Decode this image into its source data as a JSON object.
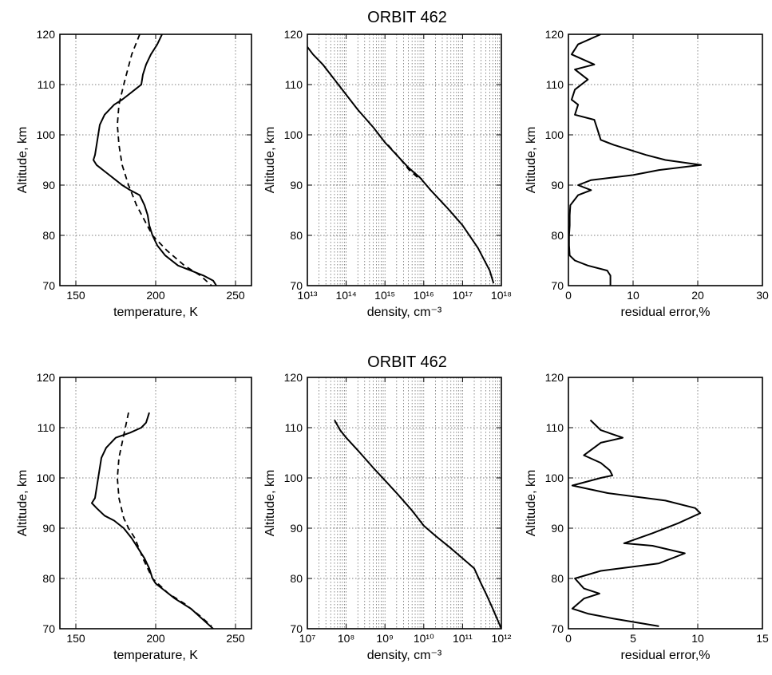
{
  "figure": {
    "row_titles": [
      "ORBIT 462",
      "ORBIT 462"
    ]
  },
  "chart_data": [
    {
      "type": "line",
      "xlabel": "temperature, K",
      "ylabel": "Altitude, km",
      "xlim": [
        140,
        260
      ],
      "ylim": [
        70,
        120
      ],
      "xticks": [
        "150",
        "200",
        "250"
      ],
      "yticks": [
        "70",
        "80",
        "90",
        "100",
        "110",
        "120"
      ],
      "series": [
        {
          "style": "solid",
          "points": [
            [
              204,
              120
            ],
            [
              201,
              118
            ],
            [
              197,
              116
            ],
            [
              194,
              114
            ],
            [
              192,
              112
            ],
            [
              191,
              110
            ],
            [
              187,
              109
            ],
            [
              183,
              108
            ],
            [
              179,
              107
            ],
            [
              174,
              106
            ],
            [
              168,
              104
            ],
            [
              165,
              102
            ],
            [
              164,
              100
            ],
            [
              163,
              98
            ],
            [
              162,
              96
            ],
            [
              161,
              95
            ],
            [
              163,
              94
            ],
            [
              167,
              93
            ],
            [
              171,
              92
            ],
            [
              175,
              91
            ],
            [
              179,
              90
            ],
            [
              184,
              89
            ],
            [
              190,
              88
            ],
            [
              193,
              86
            ],
            [
              195,
              84
            ],
            [
              196,
              82
            ],
            [
              198,
              80
            ],
            [
              201,
              78
            ],
            [
              206,
              76
            ],
            [
              214,
              74
            ],
            [
              222,
              73
            ],
            [
              230,
              72
            ],
            [
              236,
              71
            ],
            [
              238,
              70
            ]
          ]
        },
        {
          "style": "dashed",
          "points": [
            [
              190,
              120
            ],
            [
              185,
              116
            ],
            [
              180,
              110
            ],
            [
              177,
              106
            ],
            [
              176,
              102
            ],
            [
              177,
              98
            ],
            [
              179,
              94
            ],
            [
              183,
              90
            ],
            [
              188,
              86
            ],
            [
              193,
              83
            ],
            [
              198,
              80
            ],
            [
              207,
              77
            ],
            [
              218,
              74
            ],
            [
              228,
              72
            ],
            [
              235,
              70
            ]
          ]
        }
      ]
    },
    {
      "type": "line",
      "xlabel": "density, cm⁻³",
      "ylabel": "Altitude, km",
      "xscale": "log",
      "xlim": [
        10000000000000.0,
        1e+18
      ],
      "ylim": [
        70,
        120
      ],
      "xticks": [
        "10¹³",
        "10¹⁴",
        "10¹⁵",
        "10¹⁶",
        "10¹⁷",
        "10¹⁸"
      ],
      "yticks": [
        "70",
        "80",
        "90",
        "100",
        "110",
        "120"
      ],
      "series": [
        {
          "style": "solid",
          "points": [
            [
              10000000000000.0,
              117.5
            ],
            [
              14000000000000.0,
              116
            ],
            [
              25000000000000.0,
              114
            ],
            [
              50000000000000.0,
              111
            ],
            [
              100000000000000.0,
              108
            ],
            [
              200000000000000.0,
              105
            ],
            [
              500000000000000.0,
              101.5
            ],
            [
              1000000000000000.0,
              98.5
            ],
            [
              2000000000000000.0,
              96
            ],
            [
              4000000000000000.0,
              93.5
            ],
            [
              8000000000000000.0,
              91.5
            ],
            [
              1.5e+16,
              89
            ],
            [
              4e+16,
              85.5
            ],
            [
              1e+17,
              82
            ],
            [
              2.5e+17,
              77.5
            ],
            [
              5e+17,
              73
            ],
            [
              6.3e+17,
              70.5
            ]
          ]
        },
        {
          "style": "dashed",
          "points": [
            [
              1200000000000000.0,
              98
            ],
            [
              2300000000000000.0,
              95.5
            ],
            [
              4200000000000000.0,
              93
            ],
            [
              7000000000000000.0,
              91.5
            ]
          ]
        }
      ]
    },
    {
      "type": "line",
      "xlabel": "residual error,%",
      "ylabel": "Altitude, km",
      "xlim": [
        0,
        30
      ],
      "ylim": [
        70,
        120
      ],
      "xticks": [
        "0",
        "10",
        "20",
        "30"
      ],
      "yticks": [
        "70",
        "80",
        "90",
        "100",
        "110",
        "120"
      ],
      "series": [
        {
          "style": "solid",
          "points": [
            [
              5,
              120
            ],
            [
              1.5,
              118
            ],
            [
              0.5,
              116
            ],
            [
              4,
              114
            ],
            [
              1,
              113
            ],
            [
              3,
              111
            ],
            [
              1,
              109
            ],
            [
              0.5,
              107
            ],
            [
              1.5,
              106
            ],
            [
              1,
              104
            ],
            [
              4,
              103
            ],
            [
              4.5,
              101
            ],
            [
              5,
              99
            ],
            [
              7,
              98
            ],
            [
              12,
              96
            ],
            [
              15,
              95
            ],
            [
              20.5,
              94
            ],
            [
              14,
              93
            ],
            [
              10,
              92
            ],
            [
              3.5,
              91
            ],
            [
              1.5,
              90
            ],
            [
              3.5,
              89
            ],
            [
              1.5,
              88
            ],
            [
              0.3,
              86
            ],
            [
              0.2,
              84
            ],
            [
              0.2,
              82
            ],
            [
              0.1,
              80
            ],
            [
              0.1,
              78
            ],
            [
              0.2,
              76
            ],
            [
              1,
              75
            ],
            [
              3,
              74
            ],
            [
              6,
              73
            ],
            [
              6.5,
              72
            ],
            [
              6.5,
              70
            ]
          ]
        }
      ]
    },
    {
      "type": "line",
      "xlabel": "temperature, K",
      "ylabel": "Altitude, km",
      "xlim": [
        140,
        260
      ],
      "ylim": [
        70,
        120
      ],
      "xticks": [
        "150",
        "200",
        "250"
      ],
      "yticks": [
        "70",
        "80",
        "90",
        "100",
        "110",
        "120"
      ],
      "series": [
        {
          "style": "solid",
          "points": [
            [
              196,
              113
            ],
            [
              194,
              111
            ],
            [
              191,
              110
            ],
            [
              184,
              109
            ],
            [
              175,
              108
            ],
            [
              169,
              106
            ],
            [
              166,
              104
            ],
            [
              165,
              102
            ],
            [
              164,
              100
            ],
            [
              163,
              98
            ],
            [
              162,
              96
            ],
            [
              160,
              95
            ],
            [
              163,
              94
            ],
            [
              168,
              92.5
            ],
            [
              174,
              91.5
            ],
            [
              180,
              90
            ],
            [
              185,
              88
            ],
            [
              189,
              86
            ],
            [
              193,
              84
            ],
            [
              196,
              82
            ],
            [
              198,
              80
            ],
            [
              200,
              79
            ],
            [
              204,
              78
            ],
            [
              212,
              76
            ],
            [
              222,
              74
            ],
            [
              229,
              72
            ],
            [
              236,
              70
            ]
          ]
        },
        {
          "style": "dashed",
          "points": [
            [
              183,
              113
            ],
            [
              181,
              110
            ],
            [
              179,
              107
            ],
            [
              177,
              104
            ],
            [
              176,
              100
            ],
            [
              177,
              96
            ],
            [
              180,
              92
            ],
            [
              183,
              90
            ],
            [
              187,
              88
            ],
            [
              192,
              84
            ],
            [
              198,
              80
            ],
            [
              208,
              77
            ],
            [
              218,
              75
            ],
            [
              228,
              72.5
            ],
            [
              235,
              70.5
            ]
          ]
        }
      ]
    },
    {
      "type": "line",
      "xlabel": "density, cm⁻³",
      "ylabel": "Altitude, km",
      "xscale": "log",
      "xlim": [
        10000000.0,
        1000000000000.0
      ],
      "ylim": [
        70,
        120
      ],
      "xticks": [
        "10⁷",
        "10⁸",
        "10⁹",
        "10¹⁰",
        "10¹¹",
        "10¹²"
      ],
      "yticks": [
        "70",
        "80",
        "90",
        "100",
        "110",
        "120"
      ],
      "series": [
        {
          "style": "solid",
          "points": [
            [
              50000000.0,
              111.5
            ],
            [
              70000000.0,
              109.5
            ],
            [
              100000000.0,
              108
            ],
            [
              200000000.0,
              105.5
            ],
            [
              500000000.0,
              102
            ],
            [
              1000000000.0,
              99.5
            ],
            [
              2000000000.0,
              97
            ],
            [
              5000000000.0,
              93.5
            ],
            [
              10000000000.0,
              90.5
            ],
            [
              20000000000.0,
              88.5
            ],
            [
              50000000000.0,
              86
            ],
            [
              100000000000.0,
              84
            ],
            [
              200000000000.0,
              82
            ],
            [
              300000000000.0,
              79
            ],
            [
              400000000000.0,
              77
            ],
            [
              600000000000.0,
              74
            ],
            [
              1000000000000.0,
              70
            ]
          ]
        }
      ]
    },
    {
      "type": "line",
      "xlabel": "residual error,%",
      "ylabel": "Altitude, km",
      "xlim": [
        0,
        15
      ],
      "ylim": [
        70,
        120
      ],
      "xticks": [
        "0",
        "5",
        "10",
        "15"
      ],
      "yticks": [
        "70",
        "80",
        "90",
        "100",
        "110",
        "120"
      ],
      "series": [
        {
          "style": "solid",
          "points": [
            [
              1.7,
              111.5
            ],
            [
              2.5,
              109.5
            ],
            [
              4.2,
              108
            ],
            [
              2.5,
              107
            ],
            [
              1.2,
              104.5
            ],
            [
              2.5,
              103
            ],
            [
              3.2,
              101.5
            ],
            [
              3.4,
              100.5
            ],
            [
              2.5,
              100
            ],
            [
              0.3,
              98.5
            ],
            [
              3,
              97
            ],
            [
              7.5,
              95.5
            ],
            [
              9.8,
              94
            ],
            [
              10.2,
              93
            ],
            [
              8.5,
              91
            ],
            [
              6.5,
              89
            ],
            [
              4.3,
              87
            ],
            [
              6.5,
              86.5
            ],
            [
              9,
              85
            ],
            [
              7,
              83
            ],
            [
              2.5,
              81.5
            ],
            [
              0.5,
              80
            ],
            [
              1.2,
              78
            ],
            [
              2.4,
              77
            ],
            [
              1.2,
              76
            ],
            [
              0.3,
              74
            ],
            [
              1.5,
              73
            ],
            [
              3.5,
              72
            ],
            [
              7,
              70.5
            ]
          ]
        }
      ]
    }
  ]
}
